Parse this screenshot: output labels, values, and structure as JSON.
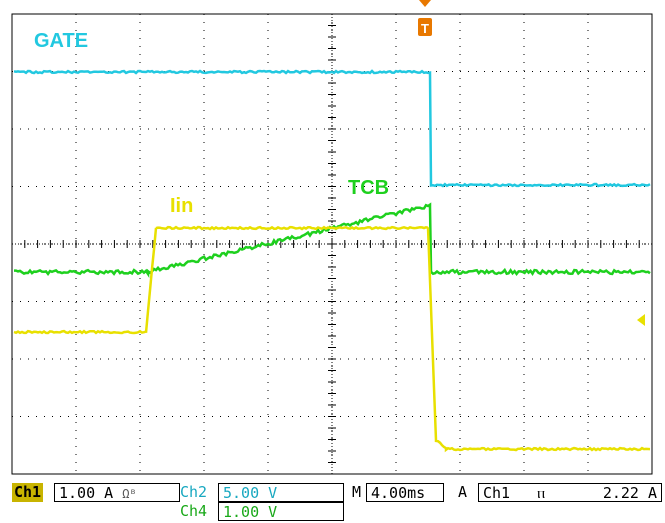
{
  "colors": {
    "gate": "#22c8e0",
    "tcb": "#1ed01e",
    "iin": "#e8e000",
    "grid": "#000000",
    "trigger": "#e87800",
    "ch1_tag_bg": "#c8b400",
    "ch2_text": "#18a8c0",
    "ch4_text": "#18a818"
  },
  "traces": {
    "gate_label": "GATE",
    "tcb_label": "TCB",
    "iin_label": "Iin"
  },
  "markers": {
    "trigger_icon": "trigger-T-icon",
    "trigger_letter": "T",
    "level_icon": "trigger-level-arrow-icon"
  },
  "status": {
    "ch1_tag": "Ch1",
    "ch1_scale": "1.00 A",
    "ch1_units_icon": "omega-bandwidth-icon",
    "ch1_units_glyph": "Ωᴮ",
    "ch2_tag": "Ch2",
    "ch2_scale": "5.00 V",
    "ch4_tag": "Ch4",
    "ch4_scale": "1.00 V",
    "timebase_tag": "M",
    "timebase": "4.00ms",
    "acq_tag": "A",
    "trig_source": "Ch1",
    "trig_slope_icon": "falling-edge-icon",
    "trig_slope_glyph": "ⲡ",
    "trig_level": "2.22 A"
  }
}
